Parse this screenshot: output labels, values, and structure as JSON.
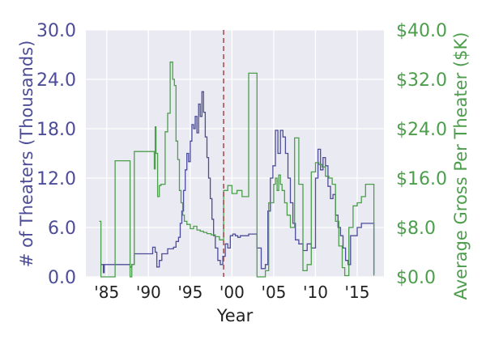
{
  "chart_data": {
    "type": "line",
    "title": "",
    "xlabel": "Year",
    "ylabel_left": "# of Theaters (Thousands)",
    "ylabel_right": "Average Gross Per Theater ($K)",
    "xlim": [
      1982.5,
      2018.2
    ],
    "ylim_left": [
      0,
      30
    ],
    "ylim_right": [
      0,
      40
    ],
    "x_ticks": [
      1985,
      1990,
      1995,
      2000,
      2005,
      2010,
      2015
    ],
    "x_tick_labels": [
      "'85",
      "'90",
      "'95",
      "'00",
      "'05",
      "'10",
      "'15"
    ],
    "y_left_ticks": [
      0,
      6,
      12,
      18,
      24,
      30
    ],
    "y_left_tick_labels": [
      "0.0",
      "6.0",
      "12.0",
      "18.0",
      "24.0",
      "30.0"
    ],
    "y_right_ticks": [
      0,
      8,
      16,
      24,
      32,
      40
    ],
    "y_right_tick_labels": [
      "$0.0",
      "$8.0",
      "$16.0",
      "$24.0",
      "$32.0",
      "$40.0"
    ],
    "grid": true,
    "reference_line": {
      "x": 1999.0,
      "style": "dashed"
    },
    "series": [
      {
        "axis": "left",
        "step": true,
        "color": "#4c4c99",
        "x": [
          1984.3,
          1984.6,
          1984.7,
          1986.0,
          1987.8,
          1988.0,
          1988.3,
          1990.0,
          1990.5,
          1990.8,
          1991.0,
          1991.3,
          1991.6,
          1992.0,
          1992.3,
          1993.0,
          1993.3,
          1993.6,
          1993.8,
          1994.0,
          1994.2,
          1994.4,
          1994.6,
          1994.8,
          1995.0,
          1995.2,
          1995.4,
          1995.6,
          1995.8,
          1996.0,
          1996.2,
          1996.4,
          1996.6,
          1996.8,
          1997.0,
          1997.2,
          1997.4,
          1997.6,
          1997.8,
          1998.0,
          1998.3,
          1998.6,
          1998.9,
          1999.2,
          1999.5,
          1999.8,
          2000.1,
          2000.4,
          2000.7,
          2001.0,
          2002.0,
          2003.0,
          2003.5,
          2004.0,
          2004.3,
          2004.6,
          2004.9,
          2005.2,
          2005.5,
          2005.8,
          2006.1,
          2006.4,
          2006.7,
          2007.0,
          2007.3,
          2007.6,
          2008.0,
          2008.5,
          2009.0,
          2009.5,
          2010.0,
          2010.3,
          2010.6,
          2010.9,
          2011.2,
          2011.5,
          2011.8,
          2012.1,
          2012.4,
          2012.7,
          2013.0,
          2013.3,
          2013.6,
          2013.9,
          2014.2,
          2015.0,
          2015.5,
          2016.5,
          2017.0
        ],
        "values": [
          1.5,
          0.5,
          1.5,
          1.5,
          1.2,
          1.5,
          2.8,
          2.8,
          3.6,
          3.0,
          1.2,
          2.0,
          2.8,
          2.8,
          3.4,
          3.6,
          4.3,
          4.8,
          6.5,
          8.0,
          10.5,
          13.0,
          15.0,
          14.0,
          16.5,
          18.5,
          18.0,
          19.5,
          17.5,
          21.0,
          19.5,
          22.5,
          20.0,
          17.0,
          14.5,
          12.0,
          9.5,
          7.0,
          5.0,
          3.5,
          2.0,
          1.5,
          2.5,
          4.0,
          3.5,
          5.0,
          5.2,
          5.0,
          4.8,
          5.0,
          5.2,
          3.5,
          1.0,
          1.5,
          8.0,
          12.0,
          13.5,
          17.8,
          15.0,
          17.8,
          17.0,
          15.0,
          12.0,
          9.0,
          6.5,
          4.5,
          4.0,
          3.2,
          4.0,
          3.5,
          12.0,
          15.5,
          13.0,
          14.5,
          13.5,
          11.0,
          9.5,
          10.0,
          7.5,
          6.0,
          5.0,
          3.5,
          2.0,
          1.5,
          5.0,
          6.0,
          6.5,
          6.5,
          0.3
        ]
      },
      {
        "axis": "right",
        "step": true,
        "color": "#4c9e4c",
        "x": [
          1984.1,
          1984.3,
          1986.0,
          1987.8,
          1988.0,
          1988.3,
          1990.0,
          1990.7,
          1990.8,
          1990.9,
          1991.1,
          1991.3,
          1991.5,
          1992.0,
          1992.3,
          1992.6,
          1992.9,
          1993.1,
          1993.3,
          1993.5,
          1993.7,
          1993.9,
          1994.1,
          1994.3,
          1994.6,
          1995.0,
          1995.4,
          1995.8,
          1996.2,
          1996.6,
          1997.0,
          1997.5,
          1998.0,
          1998.5,
          1999.0,
          1999.5,
          2000.0,
          2000.6,
          2001.2,
          2002.0,
          2003.0,
          2004.0,
          2004.4,
          2005.0,
          2005.2,
          2005.4,
          2005.6,
          2005.8,
          2006.0,
          2006.3,
          2006.6,
          2007.0,
          2007.5,
          2008.0,
          2008.5,
          2009.0,
          2009.5,
          2010.0,
          2010.4,
          2010.8,
          2011.2,
          2011.6,
          2012.0,
          2012.4,
          2012.8,
          2013.2,
          2013.5,
          2014.0,
          2014.5,
          2015.0,
          2015.5,
          2016.0,
          2016.5,
          2017.0
        ],
        "values": [
          9.0,
          0.0,
          18.8,
          0.0,
          2.0,
          20.3,
          20.3,
          17.5,
          24.3,
          20.0,
          13.0,
          14.8,
          15.0,
          23.5,
          26.5,
          34.8,
          32.0,
          31.0,
          22.0,
          19.0,
          14.0,
          12.0,
          10.0,
          9.0,
          8.5,
          7.8,
          8.2,
          7.6,
          7.4,
          7.2,
          7.0,
          6.8,
          6.5,
          6.0,
          14.0,
          14.8,
          13.5,
          14.0,
          13.0,
          33.0,
          0.0,
          1.0,
          12.0,
          15.0,
          16.0,
          14.0,
          16.5,
          15.0,
          14.0,
          12.0,
          10.0,
          8.0,
          22.5,
          15.0,
          1.0,
          2.0,
          17.0,
          18.5,
          18.2,
          17.8,
          16.3,
          16.0,
          15.0,
          9.0,
          5.0,
          1.5,
          0.2,
          8.0,
          11.5,
          12.0,
          13.0,
          15.0,
          15.0,
          0.2
        ]
      }
    ]
  }
}
